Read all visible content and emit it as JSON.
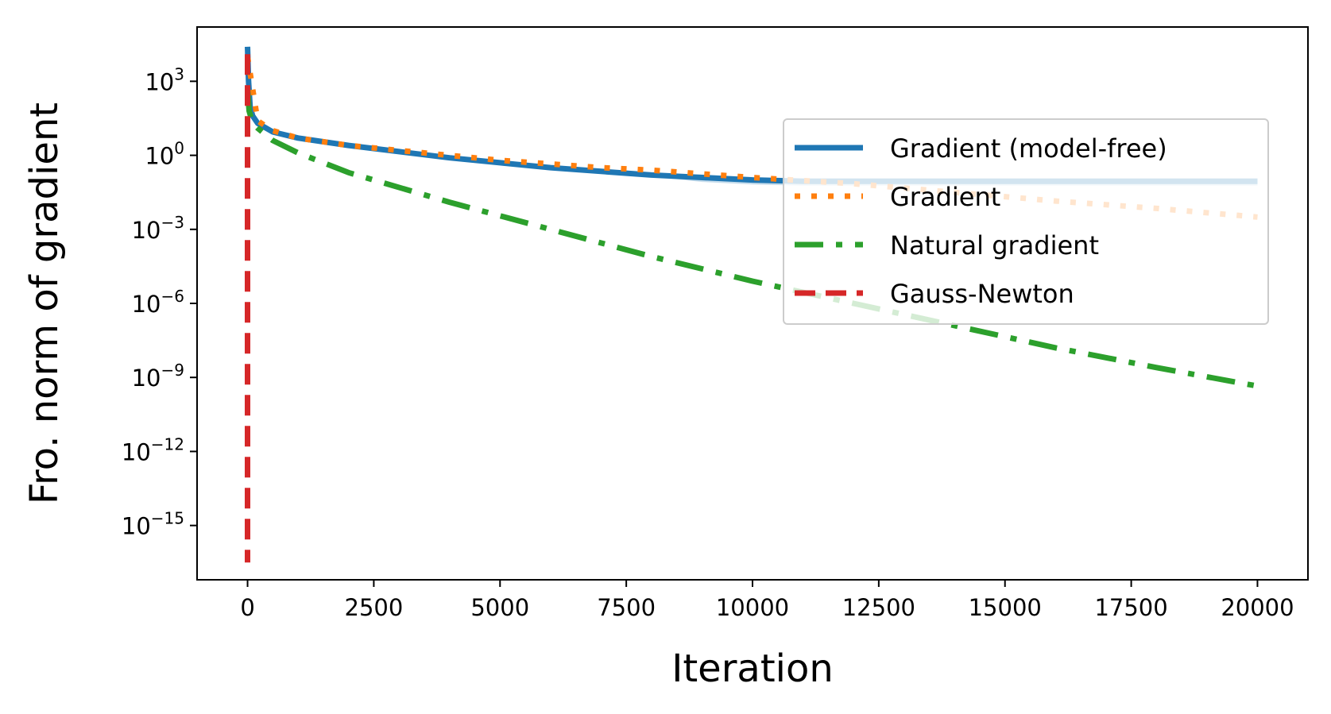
{
  "chart_data": {
    "type": "line",
    "xlabel": "Iteration",
    "ylabel": "Fro. norm of gradient",
    "y_scale": "log",
    "xlim": [
      -1000,
      21000
    ],
    "ylim_exponent": [
      -17.2,
      5.2
    ],
    "x_ticks": [
      {
        "value": 0,
        "label": "0"
      },
      {
        "value": 2500,
        "label": "2500"
      },
      {
        "value": 5000,
        "label": "5000"
      },
      {
        "value": 7500,
        "label": "7500"
      },
      {
        "value": 10000,
        "label": "10000"
      },
      {
        "value": 12500,
        "label": "12500"
      },
      {
        "value": 15000,
        "label": "15000"
      },
      {
        "value": 17500,
        "label": "17500"
      },
      {
        "value": 20000,
        "label": "20000"
      }
    ],
    "y_ticks": [
      {
        "exponent": 3,
        "base": "10",
        "sup": "3"
      },
      {
        "exponent": 0,
        "base": "10",
        "sup": "0"
      },
      {
        "exponent": -3,
        "base": "10",
        "sup": "−3"
      },
      {
        "exponent": -6,
        "base": "10",
        "sup": "−6"
      },
      {
        "exponent": -9,
        "base": "10",
        "sup": "−9"
      },
      {
        "exponent": -12,
        "base": "10",
        "sup": "−12"
      },
      {
        "exponent": -15,
        "base": "10",
        "sup": "−15"
      }
    ],
    "grid": false,
    "legend_position": "upper-right",
    "series": [
      {
        "name": "Gradient (model-free)",
        "color": "#1f77b4",
        "style": "solid",
        "band": true,
        "points": [
          [
            0,
            4.4
          ],
          [
            20,
            3.0
          ],
          [
            50,
            2.0
          ],
          [
            100,
            1.6
          ],
          [
            200,
            1.3
          ],
          [
            500,
            0.95
          ],
          [
            1000,
            0.7
          ],
          [
            2000,
            0.4
          ],
          [
            3000,
            0.15
          ],
          [
            4000,
            -0.1
          ],
          [
            5000,
            -0.3
          ],
          [
            6000,
            -0.5
          ],
          [
            7000,
            -0.65
          ],
          [
            8000,
            -0.8
          ],
          [
            9000,
            -0.9
          ],
          [
            10000,
            -1.0
          ],
          [
            11000,
            -1.05
          ],
          [
            12000,
            -1.05
          ],
          [
            14000,
            -1.05
          ],
          [
            16000,
            -1.05
          ],
          [
            18000,
            -1.05
          ],
          [
            20000,
            -1.05
          ]
        ]
      },
      {
        "name": "Gradient",
        "color": "#ff7f0e",
        "style": "dotted",
        "points": [
          [
            0,
            4.0
          ],
          [
            200,
            1.4
          ],
          [
            500,
            1.0
          ],
          [
            1000,
            0.7
          ],
          [
            2000,
            0.4
          ],
          [
            3000,
            0.2
          ],
          [
            4000,
            0.0
          ],
          [
            5000,
            -0.2
          ],
          [
            6000,
            -0.35
          ],
          [
            7000,
            -0.5
          ],
          [
            8000,
            -0.6
          ],
          [
            9000,
            -0.75
          ],
          [
            10000,
            -0.9
          ],
          [
            12000,
            -1.15
          ],
          [
            14000,
            -1.5
          ],
          [
            16000,
            -1.85
          ],
          [
            18000,
            -2.15
          ],
          [
            20000,
            -2.5
          ]
        ]
      },
      {
        "name": "Natural gradient",
        "color": "#2ca02c",
        "style": "dashdot",
        "points": [
          [
            0,
            2.7
          ],
          [
            30,
            1.8
          ],
          [
            100,
            1.3
          ],
          [
            200,
            1.1
          ],
          [
            500,
            0.6
          ],
          [
            1000,
            0.1
          ],
          [
            2000,
            -0.7
          ],
          [
            4000,
            -1.9
          ],
          [
            6000,
            -3.0
          ],
          [
            8000,
            -4.1
          ],
          [
            10000,
            -5.1
          ],
          [
            12000,
            -6.0
          ],
          [
            14000,
            -6.9
          ],
          [
            16000,
            -7.8
          ],
          [
            18000,
            -8.6
          ],
          [
            20000,
            -9.35
          ]
        ]
      },
      {
        "name": "Gauss-Newton",
        "color": "#d62728",
        "style": "dashed",
        "points": [
          [
            0,
            4.1
          ],
          [
            0,
            -16.5
          ]
        ]
      }
    ]
  }
}
